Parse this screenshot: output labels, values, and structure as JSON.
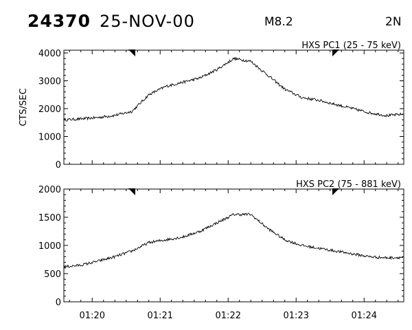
{
  "header": {
    "observation_id": "24370",
    "date": "25-NOV-00",
    "flare_class": "M8.2",
    "detector": "2N"
  },
  "chart_data": [
    {
      "type": "line",
      "title": "HXS PC1 (25 - 75 keV)",
      "ylabel": "CTS/SEC",
      "ylim": [
        0,
        4100
      ],
      "yticks": [
        0,
        1000,
        2000,
        3000,
        4000
      ],
      "xlim": [
        "01:19:35",
        "01:24:35"
      ],
      "xticks": [
        "01:20",
        "01:21",
        "01:22",
        "01:23",
        "01:24"
      ],
      "series": [
        {
          "x": [
            "01:19:35",
            "01:19:50",
            "01:20:05",
            "01:20:20",
            "01:20:35",
            "01:20:50",
            "01:21:05",
            "01:21:20",
            "01:21:35",
            "01:21:50",
            "01:22:05",
            "01:22:20",
            "01:22:35",
            "01:22:50",
            "01:23:05",
            "01:23:20",
            "01:23:35",
            "01:23:50",
            "01:24:05",
            "01:24:20",
            "01:24:35"
          ],
          "values": [
            1600,
            1630,
            1680,
            1760,
            1900,
            2500,
            2800,
            2950,
            3100,
            3400,
            3800,
            3700,
            3200,
            2700,
            2400,
            2300,
            2150,
            2000,
            1850,
            1750,
            1800
          ]
        }
      ],
      "markers": [
        "01:20:35",
        "01:23:35"
      ]
    },
    {
      "type": "line",
      "title": "HXS PC2 (75 - 881 keV)",
      "ylabel": "",
      "ylim": [
        0,
        2000
      ],
      "yticks": [
        0,
        500,
        1000,
        1500,
        2000
      ],
      "xlim": [
        "01:19:35",
        "01:24:35"
      ],
      "xticks": [
        "01:20",
        "01:21",
        "01:22",
        "01:23",
        "01:24"
      ],
      "series": [
        {
          "x": [
            "01:19:35",
            "01:19:50",
            "01:20:05",
            "01:20:20",
            "01:20:35",
            "01:20:50",
            "01:21:05",
            "01:21:20",
            "01:21:35",
            "01:21:50",
            "01:22:05",
            "01:22:20",
            "01:22:35",
            "01:22:50",
            "01:23:05",
            "01:23:20",
            "01:23:35",
            "01:23:50",
            "01:24:05",
            "01:24:20",
            "01:24:35"
          ],
          "values": [
            620,
            650,
            720,
            800,
            900,
            1050,
            1100,
            1150,
            1250,
            1400,
            1550,
            1550,
            1300,
            1100,
            1000,
            950,
            900,
            850,
            800,
            780,
            790
          ]
        }
      ],
      "markers": [
        "01:20:35",
        "01:23:35"
      ]
    }
  ]
}
